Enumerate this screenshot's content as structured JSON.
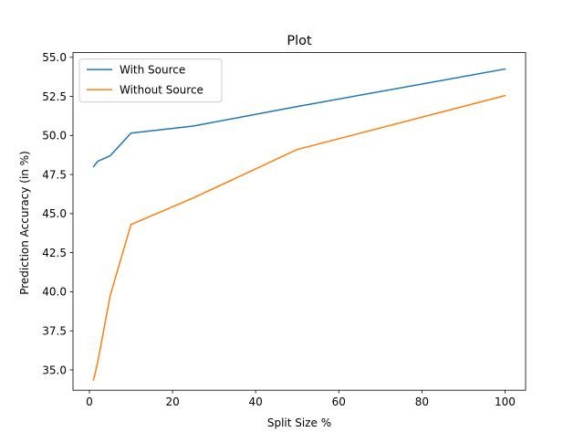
{
  "chart_data": {
    "type": "line",
    "title": "Plot",
    "xlabel": "Split Size %",
    "ylabel": "Prediction Accuracy (in %)",
    "xlim": [
      -3.95,
      104.95
    ],
    "ylim": [
      33.7,
      55.3
    ],
    "xticks": [
      0,
      20,
      40,
      60,
      80,
      100
    ],
    "yticks": [
      35.0,
      37.5,
      40.0,
      42.5,
      45.0,
      47.5,
      50.0,
      52.5,
      55.0
    ],
    "xtick_labels": [
      "0",
      "20",
      "40",
      "60",
      "80",
      "100"
    ],
    "ytick_labels": [
      "35.0",
      "37.5",
      "40.0",
      "42.5",
      "45.0",
      "47.5",
      "50.0",
      "52.5",
      "55.0"
    ],
    "grid": false,
    "legend_position": "upper-left",
    "series": [
      {
        "name": "With Source",
        "color": "#1f77b4",
        "x": [
          1,
          2,
          5,
          10,
          25,
          50,
          100
        ],
        "y": [
          48.0,
          48.35,
          48.7,
          50.15,
          50.6,
          51.85,
          54.25
        ]
      },
      {
        "name": "Without Source",
        "color": "#ff7f0e",
        "x": [
          1,
          2,
          5,
          10,
          25,
          50,
          100
        ],
        "y": [
          34.35,
          35.5,
          39.75,
          44.3,
          46.0,
          49.1,
          52.55
        ]
      }
    ]
  }
}
